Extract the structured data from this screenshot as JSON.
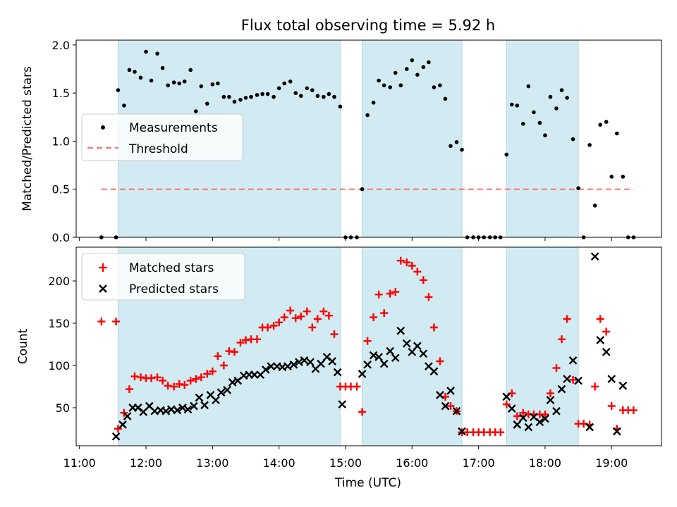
{
  "chart_data": {
    "title": "Flux total observing time = 5.92 h",
    "xlabel": "Time (UTC)",
    "xlim": [
      10.95,
      19.75
    ],
    "xticks": [
      11,
      12,
      13,
      14,
      15,
      16,
      17,
      18,
      19
    ],
    "xtick_labels": [
      "11:00",
      "12:00",
      "13:00",
      "14:00",
      "15:00",
      "16:00",
      "17:00",
      "18:00",
      "19:00"
    ],
    "shaded_intervals": [
      [
        11.58,
        14.92
      ],
      [
        15.25,
        16.75
      ],
      [
        17.42,
        18.5
      ]
    ],
    "colors": {
      "shade": "#add8e6",
      "threshold": "#ff7070",
      "matched": "#ff0000",
      "predicted": "#000000",
      "measurements": "#000000"
    },
    "top": {
      "type": "scatter",
      "ylabel": "Matched/Predicted stars",
      "ylim": [
        0,
        2.05
      ],
      "yticks": [
        0.0,
        0.5,
        1.0,
        1.5,
        2.0
      ],
      "ytick_labels": [
        "0.0",
        "0.5",
        "1.0",
        "1.5",
        "2.0"
      ],
      "legend": {
        "placement": "center-left",
        "entries": [
          "Measurements",
          "Threshold"
        ]
      },
      "threshold": {
        "name": "Threshold",
        "value": 0.5,
        "x": [
          11.33,
          19.33
        ]
      },
      "measurements": {
        "name": "Measurements",
        "x": [
          11.33,
          11.55,
          11.58,
          11.67,
          11.75,
          11.83,
          11.92,
          12.0,
          12.08,
          12.17,
          12.25,
          12.33,
          12.42,
          12.5,
          12.58,
          12.67,
          12.75,
          12.83,
          12.92,
          13.0,
          13.08,
          13.17,
          13.25,
          13.33,
          13.42,
          13.5,
          13.58,
          13.67,
          13.75,
          13.83,
          13.92,
          14.0,
          14.08,
          14.17,
          14.25,
          14.33,
          14.42,
          14.5,
          14.58,
          14.67,
          14.75,
          14.83,
          14.92,
          15.0,
          15.08,
          15.17,
          15.25,
          15.33,
          15.42,
          15.5,
          15.58,
          15.67,
          15.75,
          15.83,
          15.92,
          16.0,
          16.08,
          16.17,
          16.25,
          16.33,
          16.42,
          16.5,
          16.58,
          16.67,
          16.75,
          16.83,
          16.92,
          17.0,
          17.08,
          17.17,
          17.25,
          17.33,
          17.42,
          17.5,
          17.58,
          17.67,
          17.75,
          17.83,
          17.92,
          18.0,
          18.08,
          18.17,
          18.25,
          18.33,
          18.42,
          18.5,
          18.58,
          18.67,
          18.75,
          18.83,
          18.92,
          19.0,
          19.08,
          19.17,
          19.25,
          19.33
        ],
        "y": [
          0.0,
          0.0,
          1.53,
          1.37,
          1.74,
          1.72,
          1.66,
          1.93,
          1.63,
          1.91,
          1.76,
          1.58,
          1.61,
          1.6,
          1.62,
          1.74,
          1.31,
          1.57,
          1.39,
          1.59,
          1.6,
          1.46,
          1.46,
          1.41,
          1.43,
          1.45,
          1.46,
          1.48,
          1.49,
          1.49,
          1.46,
          1.55,
          1.6,
          1.62,
          1.5,
          1.47,
          1.55,
          1.53,
          1.47,
          1.46,
          1.49,
          1.46,
          1.36,
          0.0,
          0.0,
          0.0,
          0.5,
          1.27,
          1.4,
          1.63,
          1.58,
          1.56,
          1.71,
          1.58,
          1.75,
          1.84,
          1.69,
          1.77,
          1.82,
          1.56,
          1.58,
          1.44,
          0.95,
          0.99,
          0.91,
          0.0,
          0.0,
          0.0,
          0.0,
          0.0,
          0.0,
          0.0,
          0.86,
          1.38,
          1.37,
          1.18,
          1.57,
          1.3,
          1.19,
          1.06,
          1.46,
          1.34,
          1.53,
          1.45,
          1.02,
          0.51,
          0.0,
          0.96,
          0.33,
          1.17,
          1.2,
          0.63,
          1.08,
          0.63,
          0.0,
          0.0
        ]
      }
    },
    "bottom": {
      "type": "scatter",
      "ylabel": "Count",
      "ylim": [
        5,
        240
      ],
      "yticks": [
        50,
        100,
        150,
        200
      ],
      "ytick_labels": [
        "50",
        "100",
        "150",
        "200"
      ],
      "legend": {
        "placement": "upper-left",
        "entries": [
          "Matched stars",
          "Predicted stars"
        ]
      },
      "matched": {
        "name": "Matched stars",
        "x": [
          11.33,
          11.55,
          11.58,
          11.67,
          11.75,
          11.83,
          11.92,
          12.0,
          12.08,
          12.17,
          12.25,
          12.33,
          12.42,
          12.5,
          12.58,
          12.67,
          12.75,
          12.83,
          12.92,
          13.0,
          13.08,
          13.17,
          13.25,
          13.33,
          13.42,
          13.5,
          13.58,
          13.67,
          13.75,
          13.83,
          13.92,
          14.0,
          14.08,
          14.17,
          14.25,
          14.33,
          14.42,
          14.5,
          14.58,
          14.67,
          14.75,
          14.83,
          14.92,
          15.0,
          15.08,
          15.17,
          15.25,
          15.33,
          15.42,
          15.5,
          15.58,
          15.67,
          15.75,
          15.83,
          15.92,
          16.0,
          16.08,
          16.17,
          16.25,
          16.33,
          16.42,
          16.5,
          16.58,
          16.67,
          16.75,
          16.83,
          16.92,
          17.0,
          17.08,
          17.17,
          17.25,
          17.33,
          17.42,
          17.5,
          17.58,
          17.67,
          17.75,
          17.83,
          17.92,
          18.0,
          18.08,
          18.17,
          18.25,
          18.33,
          18.42,
          18.5,
          18.58,
          18.67,
          18.75,
          18.83,
          18.92,
          19.0,
          19.08,
          19.17,
          19.25,
          19.33
        ],
        "y": [
          152,
          152,
          25,
          44,
          72,
          87,
          86,
          85,
          85,
          86,
          82,
          76,
          75,
          78,
          77,
          82,
          84,
          86,
          90,
          93,
          111,
          100,
          117,
          116,
          127,
          130,
          131,
          131,
          145,
          145,
          147,
          151,
          157,
          165,
          156,
          158,
          164,
          145,
          155,
          164,
          159,
          137,
          75,
          75,
          75,
          75,
          45,
          129,
          157,
          184,
          162,
          185,
          187,
          224,
          222,
          218,
          211,
          201,
          181,
          145,
          105,
          63,
          52,
          46,
          21,
          21,
          21,
          21,
          21,
          21,
          21,
          21,
          54,
          67,
          40,
          44,
          42,
          42,
          42,
          42,
          67,
          97,
          131,
          155,
          83,
          31,
          31,
          30,
          75,
          155,
          140,
          52,
          25,
          47,
          47,
          47
        ]
      },
      "predicted": {
        "name": "Predicted stars",
        "x": [
          11.55,
          11.65,
          11.72,
          11.8,
          11.88,
          11.96,
          12.05,
          12.13,
          12.22,
          12.3,
          12.38,
          12.47,
          12.55,
          12.63,
          12.72,
          12.8,
          12.88,
          12.97,
          13.05,
          13.13,
          13.22,
          13.3,
          13.38,
          13.47,
          13.55,
          13.63,
          13.72,
          13.8,
          13.88,
          13.97,
          14.05,
          14.13,
          14.22,
          14.3,
          14.38,
          14.47,
          14.55,
          14.63,
          14.72,
          14.8,
          14.88,
          14.95,
          15.25,
          15.33,
          15.42,
          15.5,
          15.58,
          15.67,
          15.75,
          15.83,
          15.92,
          16.0,
          16.08,
          16.17,
          16.25,
          16.33,
          16.42,
          16.5,
          16.58,
          16.67,
          16.75,
          17.42,
          17.5,
          17.58,
          17.67,
          17.75,
          17.83,
          17.92,
          18.0,
          18.08,
          18.17,
          18.25,
          18.33,
          18.42,
          18.5,
          18.67,
          18.75,
          18.83,
          18.92,
          19.0,
          19.08,
          19.17
        ],
        "y": [
          16,
          30,
          40,
          50,
          50,
          45,
          52,
          46,
          47,
          46,
          48,
          47,
          50,
          48,
          52,
          62,
          53,
          65,
          59,
          68,
          71,
          80,
          82,
          88,
          89,
          89,
          89,
          95,
          99,
          99,
          98,
          99,
          101,
          104,
          106,
          104,
          96,
          102,
          110,
          105,
          92,
          54,
          90,
          101,
          112,
          110,
          102,
          117,
          109,
          141,
          126,
          116,
          123,
          114,
          99,
          93,
          65,
          52,
          70,
          46,
          22,
          63,
          49,
          30,
          38,
          27,
          39,
          33,
          37,
          59,
          46,
          72,
          84,
          106,
          82,
          27,
          229,
          130,
          116,
          84,
          22,
          76
        ]
      }
    }
  }
}
